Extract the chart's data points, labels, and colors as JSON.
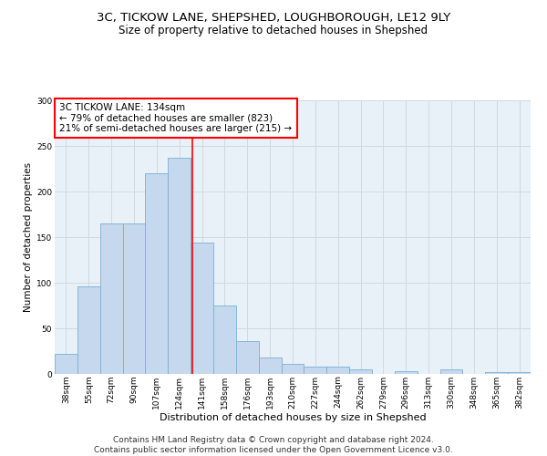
{
  "title1": "3C, TICKOW LANE, SHEPSHED, LOUGHBOROUGH, LE12 9LY",
  "title2": "Size of property relative to detached houses in Shepshed",
  "xlabel": "Distribution of detached houses by size in Shepshed",
  "ylabel": "Number of detached properties",
  "bar_labels": [
    "38sqm",
    "55sqm",
    "72sqm",
    "90sqm",
    "107sqm",
    "124sqm",
    "141sqm",
    "158sqm",
    "176sqm",
    "193sqm",
    "210sqm",
    "227sqm",
    "244sqm",
    "262sqm",
    "279sqm",
    "296sqm",
    "313sqm",
    "330sqm",
    "348sqm",
    "365sqm",
    "382sqm"
  ],
  "bar_values": [
    22,
    96,
    165,
    165,
    220,
    237,
    144,
    75,
    36,
    18,
    11,
    8,
    8,
    5,
    0,
    3,
    0,
    5,
    0,
    2,
    2
  ],
  "bar_color": "#c5d8ed",
  "bar_edge_color": "#7bafd4",
  "grid_color": "#d0d8e0",
  "bg_color": "#e8f0f8",
  "annotation_text": "3C TICKOW LANE: 134sqm\n← 79% of detached houses are smaller (823)\n21% of semi-detached houses are larger (215) →",
  "vline_color": "red",
  "annotation_box_edgecolor": "red",
  "ylim": [
    0,
    300
  ],
  "yticks": [
    0,
    50,
    100,
    150,
    200,
    250,
    300
  ],
  "footer": "Contains HM Land Registry data © Crown copyright and database right 2024.\nContains public sector information licensed under the Open Government Licence v3.0.",
  "title1_fontsize": 9.5,
  "title2_fontsize": 8.5,
  "xlabel_fontsize": 8,
  "ylabel_fontsize": 7.5,
  "tick_fontsize": 6.5,
  "annotation_fontsize": 7.5,
  "footer_fontsize": 6.5
}
